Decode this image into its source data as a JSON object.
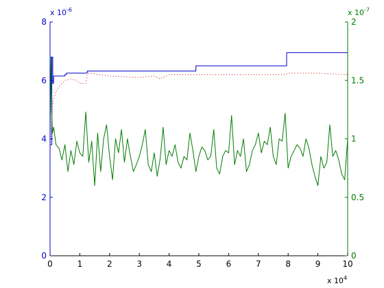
{
  "chart_data": {
    "type": "line",
    "title": "",
    "xlabel": "",
    "ylabel_left": "",
    "ylabel_right": "",
    "grid": false,
    "legend": "none",
    "x_axis": {
      "range": [
        0,
        10
      ],
      "multiplier_label": "x 10",
      "multiplier_exponent": "4",
      "ticks": [
        0,
        1,
        2,
        3,
        4,
        5,
        6,
        7,
        8,
        9,
        10
      ],
      "color": "#000000"
    },
    "y_axis_left": {
      "range": [
        0,
        8
      ],
      "multiplier_label": "x 10",
      "multiplier_exponent": "-6",
      "ticks": [
        0,
        2,
        4,
        6,
        8
      ],
      "color": "#0000cc"
    },
    "y_axis_right": {
      "range": [
        0,
        2
      ],
      "multiplier_label": "x 10",
      "multiplier_exponent": "-7",
      "ticks": [
        0,
        0.5,
        1,
        1.5,
        2
      ],
      "color": "#007a00"
    },
    "series": [
      {
        "axis": "left",
        "style": "step",
        "color": "#0000cc",
        "x": [
          0,
          0.06,
          0.09,
          0.12,
          0.5,
          0.55,
          1.25,
          4.9,
          7.95,
          10
        ],
        "y": [
          3.8,
          6.8,
          5.9,
          6.15,
          6.2,
          6.25,
          6.32,
          6.5,
          6.95,
          6.95
        ]
      },
      {
        "axis": "left",
        "style": "dotted",
        "color": "#cc0000",
        "x": [
          0,
          0.05,
          0.1,
          0.2,
          0.3,
          0.5,
          0.7,
          0.9,
          1.0,
          1.2,
          1.25,
          1.3,
          2,
          3,
          3.5,
          3.7,
          4,
          5,
          6,
          7,
          7.9,
          8.0,
          9,
          9.5,
          10
        ],
        "y": [
          3.6,
          4.5,
          5.3,
          5.6,
          5.8,
          6.0,
          6.05,
          6.0,
          5.9,
          5.9,
          6.2,
          6.25,
          6.15,
          6.1,
          6.15,
          6.05,
          6.2,
          6.2,
          6.2,
          6.2,
          6.2,
          6.25,
          6.25,
          6.22,
          6.2
        ]
      },
      {
        "axis": "right",
        "style": "solid",
        "color": "#007a00",
        "x": [
          0,
          0.03,
          0.05,
          0.08,
          0.12,
          0.2,
          0.3,
          0.4,
          0.5,
          0.6,
          0.7,
          0.8,
          0.9,
          1.0,
          1.1,
          1.2,
          1.3,
          1.4,
          1.5,
          1.6,
          1.7,
          1.8,
          1.9,
          2.0,
          2.1,
          2.2,
          2.3,
          2.4,
          2.5,
          2.6,
          2.7,
          2.8,
          2.9,
          3.0,
          3.1,
          3.2,
          3.3,
          3.4,
          3.5,
          3.6,
          3.7,
          3.8,
          3.9,
          4.0,
          4.1,
          4.2,
          4.3,
          4.4,
          4.5,
          4.6,
          4.7,
          4.8,
          4.9,
          5.0,
          5.1,
          5.2,
          5.3,
          5.4,
          5.5,
          5.6,
          5.7,
          5.8,
          5.9,
          6.0,
          6.1,
          6.2,
          6.3,
          6.4,
          6.5,
          6.6,
          6.7,
          6.8,
          6.9,
          7.0,
          7.1,
          7.2,
          7.3,
          7.4,
          7.5,
          7.6,
          7.7,
          7.8,
          7.9,
          8.0,
          8.1,
          8.2,
          8.3,
          8.4,
          8.5,
          8.6,
          8.7,
          8.8,
          8.9,
          9.0,
          9.1,
          9.2,
          9.3,
          9.4,
          9.5,
          9.6,
          9.7,
          9.8,
          9.9,
          10.0
        ],
        "y": [
          1.0,
          1.7,
          1.25,
          1.05,
          1.1,
          0.95,
          0.92,
          0.82,
          0.95,
          0.72,
          0.9,
          0.78,
          0.98,
          0.88,
          0.85,
          1.23,
          0.8,
          0.98,
          0.6,
          1.05,
          0.72,
          1.0,
          1.12,
          0.85,
          0.65,
          1.0,
          0.88,
          1.08,
          0.8,
          1.0,
          0.85,
          0.72,
          0.78,
          0.85,
          0.95,
          1.08,
          0.78,
          0.72,
          0.88,
          0.68,
          0.83,
          1.1,
          0.78,
          0.9,
          0.85,
          0.95,
          0.8,
          0.75,
          0.85,
          0.82,
          1.05,
          0.9,
          0.72,
          0.85,
          0.93,
          0.9,
          0.82,
          0.85,
          1.08,
          0.75,
          0.7,
          0.85,
          0.9,
          0.88,
          1.2,
          0.78,
          0.9,
          0.85,
          1.0,
          0.72,
          0.78,
          0.9,
          0.95,
          1.05,
          0.88,
          0.98,
          0.95,
          1.1,
          0.85,
          0.78,
          1.0,
          0.98,
          1.22,
          0.75,
          0.85,
          0.9,
          0.95,
          0.92,
          0.85,
          1.0,
          0.92,
          0.78,
          0.68,
          0.6,
          0.85,
          0.75,
          0.8,
          1.12,
          0.85,
          0.9,
          0.82,
          0.7,
          0.65,
          1.0
        ]
      }
    ]
  }
}
